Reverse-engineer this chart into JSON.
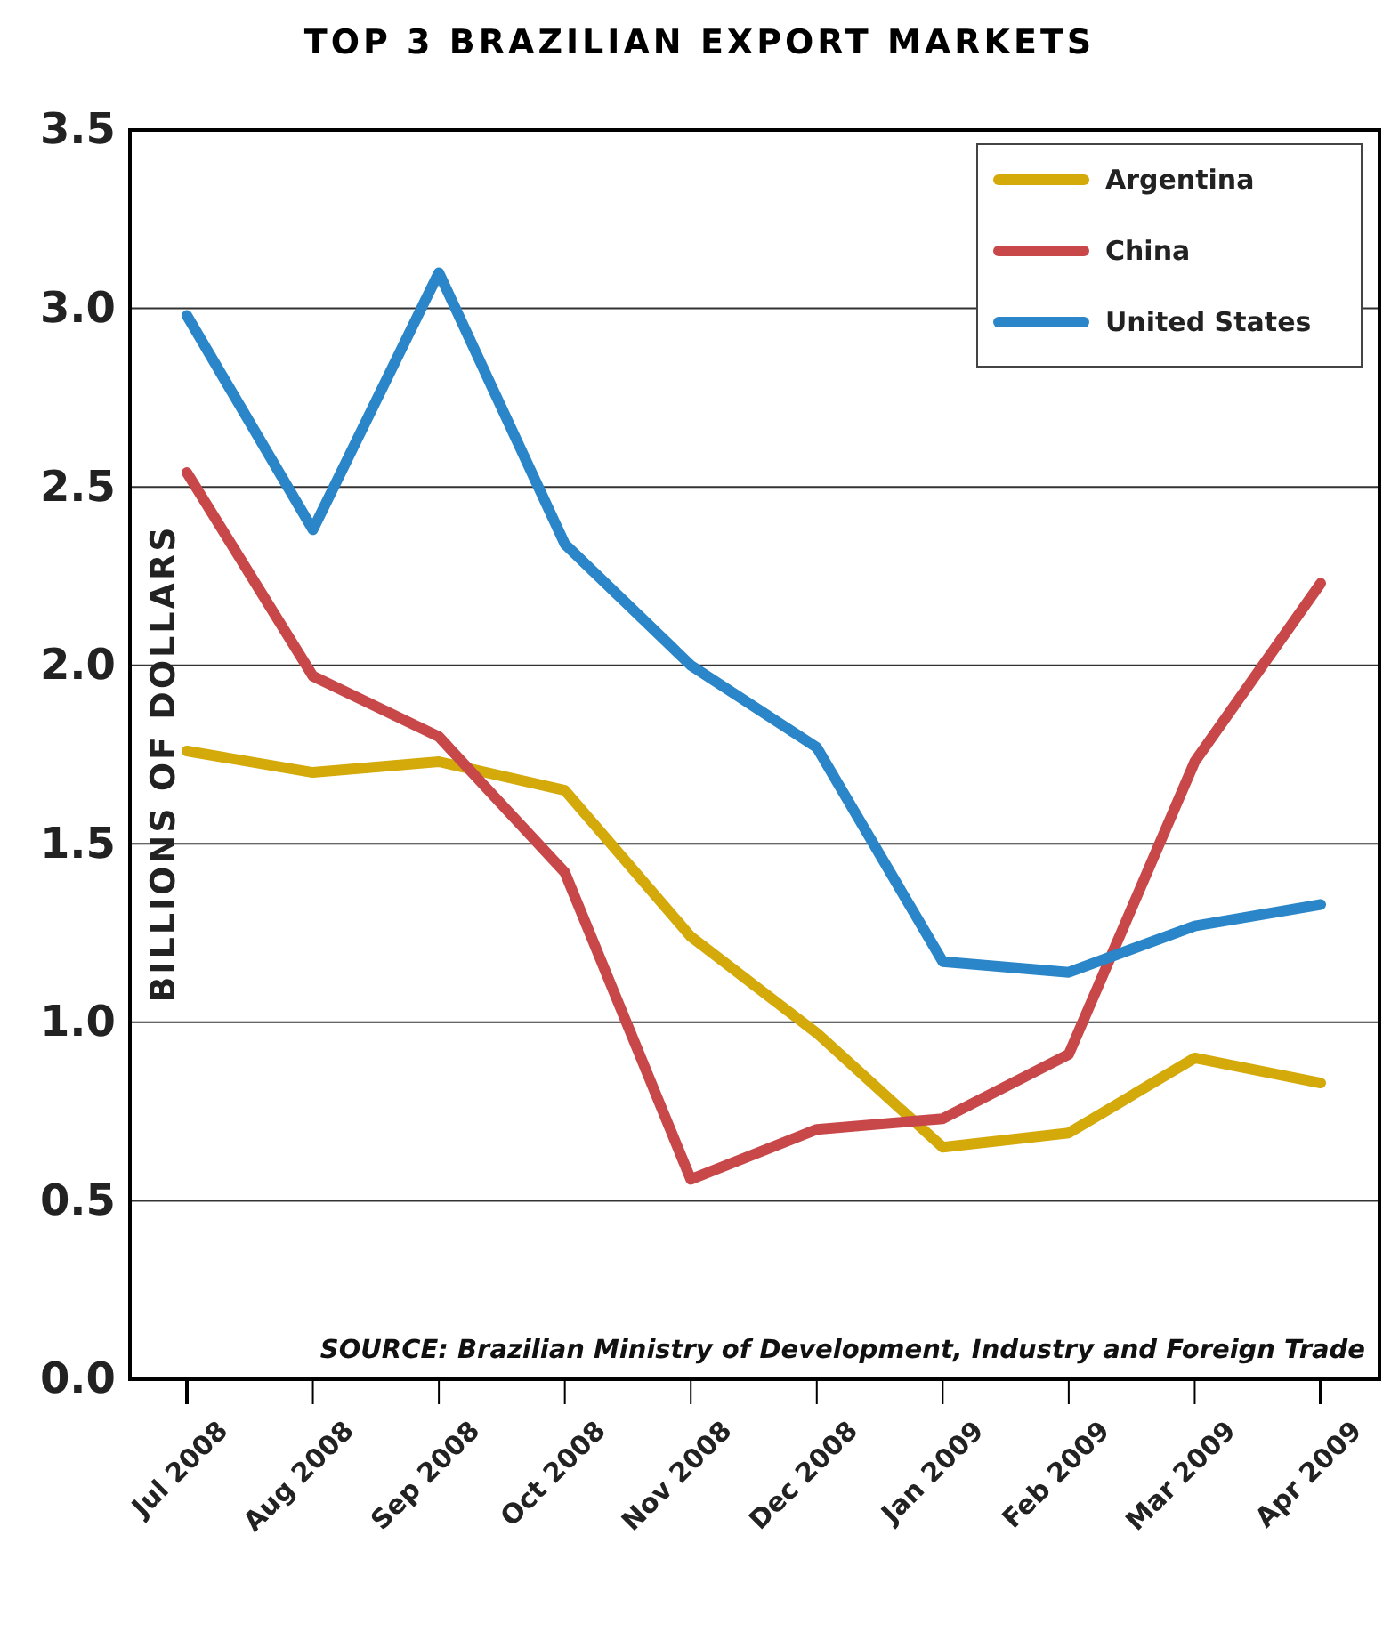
{
  "chart_data": {
    "type": "line",
    "title": "TOP 3 BRAZILIAN EXPORT MARKETS",
    "ylabel": "BILLIONS OF DOLLARS",
    "categories": [
      "Jul 2008",
      "Aug 2008",
      "Sep 2008",
      "Oct 2008",
      "Nov 2008",
      "Dec 2008",
      "Jan 2009",
      "Feb 2009",
      "Mar 2009",
      "Apr 2009"
    ],
    "series": [
      {
        "name": "Argentina",
        "color": "#d4a90a",
        "values": [
          1.76,
          1.7,
          1.73,
          1.65,
          1.24,
          0.97,
          0.65,
          0.69,
          0.9,
          0.83
        ]
      },
      {
        "name": "China",
        "color": "#c8484a",
        "values": [
          2.54,
          1.97,
          1.8,
          1.42,
          0.56,
          0.7,
          0.73,
          0.91,
          1.73,
          2.23
        ]
      },
      {
        "name": "United States",
        "color": "#2a86c8",
        "values": [
          2.98,
          2.38,
          3.1,
          2.34,
          2.0,
          1.77,
          1.17,
          1.14,
          1.27,
          1.33
        ]
      }
    ],
    "ylim": [
      0,
      3.5
    ],
    "yticks": [
      {
        "value": 0,
        "label": "0.0"
      },
      0.5,
      {
        "value": 1,
        "label": "1.0"
      },
      1.5,
      {
        "value": 2,
        "label": "2.0"
      },
      2.5,
      {
        "value": 3,
        "label": "3.0"
      },
      3.5
    ],
    "grid": "y",
    "legend": "top right",
    "marker": "none",
    "line_style": "solid",
    "annotations": [
      "SOURCE: Brazilian Ministry of Development, Industry and Foreign Trade"
    ]
  }
}
